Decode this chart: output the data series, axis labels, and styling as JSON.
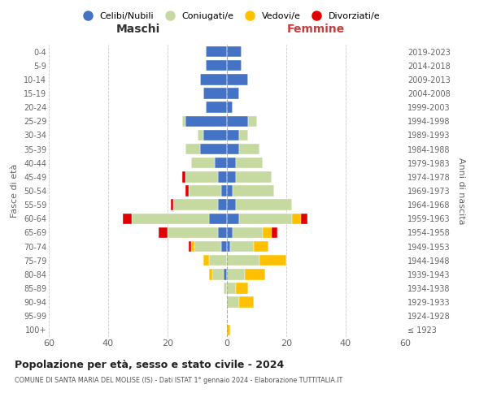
{
  "age_groups": [
    "100+",
    "95-99",
    "90-94",
    "85-89",
    "80-84",
    "75-79",
    "70-74",
    "65-69",
    "60-64",
    "55-59",
    "50-54",
    "45-49",
    "40-44",
    "35-39",
    "30-34",
    "25-29",
    "20-24",
    "15-19",
    "10-14",
    "5-9",
    "0-4"
  ],
  "birth_years": [
    "≤ 1923",
    "1924-1928",
    "1929-1933",
    "1934-1938",
    "1939-1943",
    "1944-1948",
    "1949-1953",
    "1954-1958",
    "1959-1963",
    "1964-1968",
    "1969-1973",
    "1974-1978",
    "1979-1983",
    "1984-1988",
    "1989-1993",
    "1994-1998",
    "1999-2003",
    "2004-2008",
    "2009-2013",
    "2014-2018",
    "2019-2023"
  ],
  "colors": {
    "celibe": "#4472c4",
    "coniugato": "#c5d9a0",
    "vedovo": "#ffc000",
    "divorziato": "#e00000"
  },
  "maschi": {
    "celibe": [
      0,
      0,
      0,
      0,
      1,
      0,
      2,
      3,
      6,
      3,
      2,
      3,
      4,
      9,
      8,
      14,
      7,
      8,
      9,
      7,
      7
    ],
    "coniugato": [
      0,
      0,
      0,
      1,
      4,
      6,
      9,
      17,
      26,
      15,
      11,
      11,
      8,
      5,
      2,
      1,
      0,
      0,
      0,
      0,
      0
    ],
    "vedovo": [
      0,
      0,
      0,
      0,
      1,
      2,
      1,
      0,
      0,
      0,
      0,
      0,
      0,
      0,
      0,
      0,
      0,
      0,
      0,
      0,
      0
    ],
    "divorziato": [
      0,
      0,
      0,
      0,
      0,
      0,
      1,
      3,
      3,
      1,
      1,
      1,
      0,
      0,
      0,
      0,
      0,
      0,
      0,
      0,
      0
    ]
  },
  "femmine": {
    "celibe": [
      0,
      0,
      0,
      0,
      0,
      0,
      1,
      2,
      4,
      3,
      2,
      3,
      3,
      4,
      4,
      7,
      2,
      4,
      7,
      5,
      5
    ],
    "coniugato": [
      0,
      0,
      4,
      3,
      6,
      11,
      8,
      10,
      18,
      19,
      14,
      12,
      9,
      7,
      3,
      3,
      0,
      0,
      0,
      0,
      0
    ],
    "vedovo": [
      1,
      0,
      5,
      4,
      7,
      9,
      5,
      3,
      3,
      0,
      0,
      0,
      0,
      0,
      0,
      0,
      0,
      0,
      0,
      0,
      0
    ],
    "divorziato": [
      0,
      0,
      0,
      0,
      0,
      0,
      0,
      2,
      2,
      0,
      0,
      0,
      0,
      0,
      0,
      0,
      0,
      0,
      0,
      0,
      0
    ]
  },
  "title": "Popolazione per età, sesso e stato civile - 2024",
  "subtitle": "COMUNE DI SANTA MARIA DEL MOLISE (IS) - Dati ISTAT 1° gennaio 2024 - Elaborazione TUTTITALIA.IT",
  "xlabel_left": "Maschi",
  "xlabel_right": "Femmine",
  "ylabel_left": "Fasce di età",
  "ylabel_right": "Anni di nascita",
  "xlim": 60,
  "legend_labels": [
    "Celibi/Nubili",
    "Coniugati/e",
    "Vedovi/e",
    "Divorziati/e"
  ],
  "background_color": "#ffffff",
  "grid_color": "#cccccc"
}
